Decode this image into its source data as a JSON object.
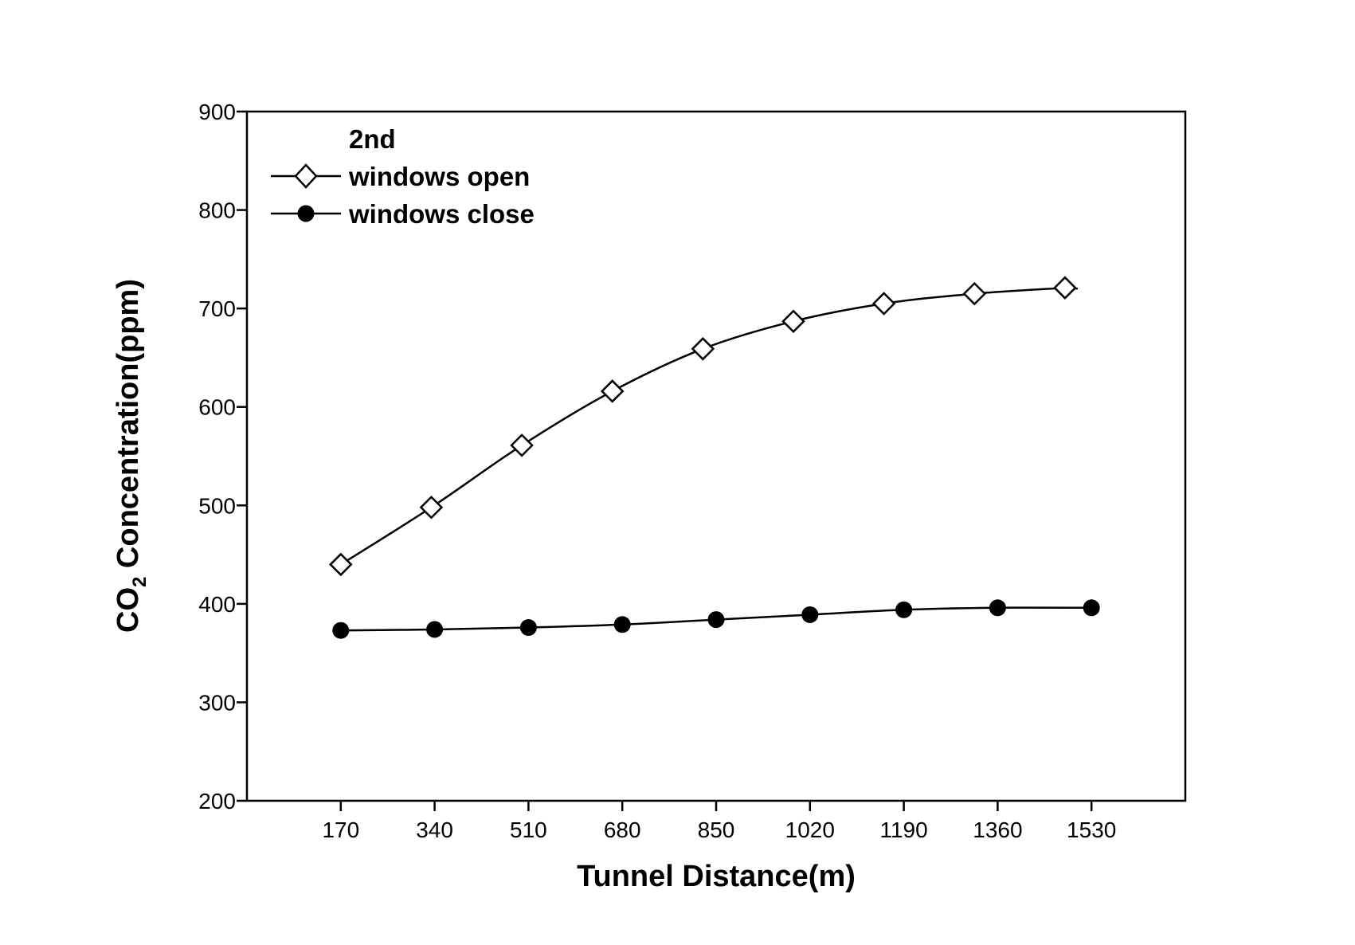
{
  "chart_data": {
    "type": "line",
    "xlabel": "Tunnel Distance(m)",
    "ylabel_main": "CO",
    "ylabel_sub": "2",
    "ylabel_rest": " Concentration(ppm)",
    "ylim": [
      200,
      900
    ],
    "yticks": [
      "200",
      "300",
      "400",
      "500",
      "600",
      "700",
      "800",
      "900"
    ],
    "xlim": [
      0,
      1700
    ],
    "xticks": [
      "170",
      "340",
      "510",
      "680",
      "850",
      "1020",
      "1190",
      "1360",
      "1530"
    ],
    "grid": false,
    "legend": {
      "title": "2nd",
      "placement": "top-left"
    },
    "series": [
      {
        "name": "windows open",
        "marker": "open-diamond",
        "x": [
          170,
          334,
          498,
          662,
          826,
          990,
          1154,
          1318,
          1482
        ],
        "y": [
          440,
          498,
          561,
          616,
          659,
          687,
          705,
          715,
          721
        ]
      },
      {
        "name": "windows close",
        "marker": "filled-circle",
        "x": [
          170,
          340,
          510,
          680,
          850,
          1020,
          1190,
          1360,
          1530
        ],
        "y": [
          373,
          374,
          376,
          379,
          384,
          389,
          394,
          396,
          396
        ]
      }
    ]
  }
}
